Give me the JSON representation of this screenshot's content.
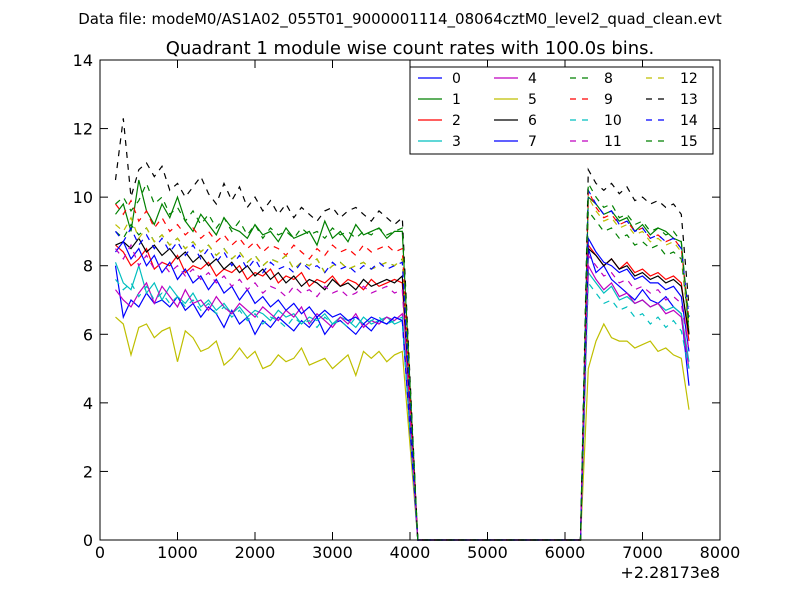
{
  "suptitle": "Data file: modeM0/AS1A02_055T01_9000001114_08064cztM0_level2_quad_clean.evt",
  "chart_data": {
    "type": "line",
    "title": "Quadrant 1 module wise count rates with 100.0s bins.",
    "xlabel": "",
    "ylabel": "",
    "x_offset_label": "+2.28173e8",
    "xlim": [
      0,
      8000
    ],
    "ylim": [
      0,
      14
    ],
    "xticks": [
      "0",
      "1000",
      "2000",
      "3000",
      "4000",
      "5000",
      "6000",
      "7000",
      "8000"
    ],
    "yticks": [
      "0",
      "2",
      "4",
      "6",
      "8",
      "10",
      "12",
      "14"
    ],
    "x_gap": [
      4100,
      6200
    ],
    "x_start_a": 200,
    "x_end_a": 3900,
    "x_start_b": 6300,
    "x_end_b": 7600,
    "step": 100,
    "legend_position": "top-right",
    "series": [
      {
        "name": "0",
        "color": "#0000ff",
        "dash": "solid",
        "segA": [
          8.0,
          6.5,
          7.0,
          6.8,
          7.2,
          6.9,
          7.0,
          6.8,
          7.1,
          6.7,
          6.9,
          6.5,
          6.8,
          6.6,
          6.2,
          6.7,
          6.3,
          6.5,
          6.0,
          6.4,
          6.2,
          6.5,
          6.3,
          6.1,
          6.4,
          6.2,
          6.5,
          6.0,
          6.3,
          6.4,
          6.2,
          6.0,
          6.3,
          6.1,
          6.4,
          6.3,
          6.5,
          6.4
        ],
        "segB": [
          8.5,
          7.8,
          8.0,
          7.6,
          7.4,
          7.2,
          7.0,
          7.3,
          7.0,
          6.9,
          7.1,
          6.8,
          6.6,
          4.5
        ]
      },
      {
        "name": "1",
        "color": "#008000",
        "dash": "solid",
        "segA": [
          9.5,
          9.8,
          9.0,
          10.5,
          9.6,
          9.2,
          9.8,
          9.4,
          10.0,
          9.3,
          9.0,
          9.5,
          9.2,
          8.9,
          9.4,
          9.1,
          9.0,
          8.8,
          9.2,
          8.9,
          9.0,
          8.7,
          9.1,
          8.8,
          8.9,
          9.0,
          8.6,
          9.3,
          8.8,
          9.0,
          8.7,
          9.2,
          8.9,
          9.0,
          9.1,
          8.8,
          9.0,
          9.0
        ],
        "segB": [
          10.0,
          9.8,
          9.5,
          9.6,
          9.3,
          9.4,
          9.0,
          9.2,
          8.9,
          9.1,
          9.0,
          8.8,
          8.7,
          6.0
        ]
      },
      {
        "name": "2",
        "color": "#ff0000",
        "dash": "solid",
        "segA": [
          8.6,
          8.4,
          8.0,
          8.2,
          8.5,
          7.9,
          8.1,
          8.0,
          8.3,
          7.8,
          8.0,
          7.9,
          8.1,
          7.7,
          7.9,
          7.8,
          8.0,
          7.6,
          7.8,
          7.7,
          7.9,
          7.5,
          7.7,
          7.6,
          7.8,
          7.4,
          7.6,
          7.5,
          7.7,
          7.4,
          7.6,
          7.5,
          7.3,
          7.6,
          7.4,
          7.5,
          7.6,
          7.5
        ],
        "segB": [
          8.6,
          8.3,
          8.0,
          8.2,
          7.9,
          8.1,
          7.8,
          7.9,
          7.7,
          7.8,
          7.6,
          7.7,
          7.5,
          5.8
        ]
      },
      {
        "name": "3",
        "color": "#00bfbf",
        "dash": "solid",
        "segA": [
          8.1,
          7.5,
          7.3,
          8.0,
          7.2,
          7.5,
          7.0,
          7.4,
          7.1,
          6.9,
          7.2,
          6.8,
          7.0,
          6.7,
          6.9,
          6.6,
          6.8,
          6.5,
          6.7,
          6.6,
          6.4,
          6.7,
          6.5,
          6.6,
          6.3,
          6.5,
          6.4,
          6.6,
          6.3,
          6.5,
          6.4,
          6.2,
          6.5,
          6.3,
          6.4,
          6.5,
          6.3,
          6.4
        ],
        "segB": [
          7.8,
          7.5,
          7.2,
          7.4,
          7.0,
          7.1,
          6.9,
          7.0,
          6.8,
          6.9,
          6.7,
          6.8,
          6.6,
          5.2
        ]
      },
      {
        "name": "4",
        "color": "#bf00bf",
        "dash": "solid",
        "segA": [
          7.3,
          7.0,
          6.8,
          7.2,
          7.5,
          6.9,
          7.4,
          7.1,
          6.8,
          7.3,
          6.9,
          7.0,
          6.7,
          7.1,
          6.8,
          6.6,
          6.9,
          6.7,
          6.5,
          6.8,
          6.6,
          6.4,
          6.7,
          6.5,
          6.8,
          6.3,
          6.6,
          6.4,
          6.2,
          6.5,
          6.3,
          6.6,
          6.2,
          6.4,
          6.3,
          6.5,
          6.4,
          6.6
        ],
        "segB": [
          8.0,
          7.6,
          7.3,
          7.5,
          7.1,
          7.2,
          6.9,
          7.0,
          6.8,
          6.9,
          6.6,
          6.7,
          6.5,
          5.0
        ]
      },
      {
        "name": "5",
        "color": "#bfbf00",
        "dash": "solid",
        "segA": [
          6.5,
          6.3,
          5.4,
          6.2,
          6.3,
          5.9,
          6.1,
          6.2,
          5.2,
          6.1,
          5.9,
          5.5,
          5.6,
          5.8,
          5.1,
          5.3,
          5.6,
          5.3,
          5.5,
          5.0,
          5.1,
          5.4,
          5.2,
          5.3,
          5.6,
          5.1,
          5.2,
          5.3,
          5.0,
          5.2,
          5.4,
          4.8,
          5.5,
          5.3,
          5.5,
          5.2,
          5.4,
          5.5
        ],
        "segB": [
          5.0,
          5.8,
          6.3,
          5.9,
          5.8,
          5.8,
          5.6,
          5.7,
          5.8,
          5.5,
          5.6,
          5.4,
          5.3,
          3.8
        ]
      },
      {
        "name": "6",
        "color": "#000000",
        "dash": "solid",
        "segA": [
          8.6,
          8.7,
          8.5,
          8.8,
          8.4,
          8.6,
          8.3,
          8.5,
          8.2,
          8.4,
          8.1,
          8.3,
          8.0,
          8.2,
          7.9,
          8.1,
          7.8,
          8.0,
          7.7,
          7.9,
          7.6,
          7.8,
          7.5,
          7.7,
          7.4,
          7.6,
          7.5,
          7.3,
          7.6,
          7.4,
          7.5,
          7.3,
          7.6,
          7.4,
          7.5,
          7.6,
          7.5,
          7.7
        ],
        "segB": [
          8.5,
          8.3,
          8.0,
          8.2,
          7.9,
          8.0,
          7.7,
          7.8,
          7.6,
          7.7,
          7.5,
          7.6,
          7.4,
          6.0
        ]
      },
      {
        "name": "7",
        "color": "#0000ff",
        "dash": "solid",
        "segA": [
          8.4,
          8.7,
          8.2,
          8.5,
          8.0,
          8.3,
          7.8,
          8.1,
          7.6,
          7.9,
          7.5,
          7.7,
          7.3,
          7.6,
          7.2,
          7.4,
          7.0,
          7.3,
          6.9,
          7.1,
          6.8,
          7.0,
          6.7,
          6.9,
          6.6,
          6.8,
          6.5,
          6.7,
          6.5,
          6.6,
          6.4,
          6.5,
          6.3,
          6.5,
          6.4,
          6.3,
          6.5,
          6.4
        ],
        "segB": [
          8.8,
          8.4,
          8.1,
          8.0,
          7.8,
          7.9,
          7.6,
          7.7,
          7.5,
          7.5,
          7.3,
          7.4,
          7.1,
          5.5
        ]
      },
      {
        "name": "8",
        "color": "#008000",
        "dash": "dashed",
        "segA": [
          9.0,
          8.8,
          9.2,
          8.9,
          9.1,
          8.7,
          8.9,
          8.6,
          8.8,
          8.5,
          8.7,
          8.4,
          8.6,
          8.3,
          8.5,
          8.2,
          8.4,
          8.1,
          8.3,
          8.0,
          8.2,
          8.1,
          8.3,
          7.9,
          8.1,
          8.0,
          8.2,
          7.8,
          8.0,
          8.1,
          7.9,
          8.0,
          8.1,
          7.9,
          8.0,
          8.1,
          8.0,
          8.2
        ],
        "segB": [
          9.6,
          9.3,
          9.0,
          9.1,
          8.8,
          8.9,
          8.6,
          8.7,
          8.5,
          8.6,
          8.3,
          8.4,
          8.2,
          6.2
        ]
      },
      {
        "name": "9",
        "color": "#ff0000",
        "dash": "dashed",
        "segA": [
          9.8,
          9.5,
          9.9,
          9.3,
          9.6,
          9.1,
          9.4,
          9.0,
          9.2,
          8.9,
          9.1,
          8.8,
          9.0,
          8.7,
          8.9,
          8.6,
          8.8,
          8.5,
          8.7,
          8.4,
          8.6,
          8.5,
          8.3,
          8.6,
          8.4,
          8.2,
          8.5,
          8.3,
          8.6,
          8.4,
          8.5,
          8.3,
          8.6,
          8.4,
          8.5,
          8.6,
          8.4,
          8.5
        ],
        "segB": [
          10.2,
          9.7,
          9.4,
          9.5,
          9.2,
          9.3,
          9.0,
          9.1,
          8.8,
          8.9,
          8.7,
          8.8,
          8.5,
          6.4
        ]
      },
      {
        "name": "10",
        "color": "#00bfbf",
        "dash": "dashed",
        "segA": [
          7.6,
          7.3,
          7.5,
          7.1,
          7.4,
          7.0,
          7.2,
          6.9,
          7.1,
          6.8,
          7.0,
          6.7,
          6.9,
          6.6,
          6.8,
          6.5,
          6.7,
          6.4,
          6.6,
          6.3,
          6.5,
          6.4,
          6.2,
          6.5,
          6.3,
          6.4,
          6.2,
          6.5,
          6.3,
          6.4,
          6.2,
          6.5,
          6.3,
          6.4,
          6.5,
          6.3,
          6.4,
          6.5
        ],
        "segB": [
          7.5,
          7.2,
          6.9,
          7.0,
          6.7,
          6.8,
          6.5,
          6.6,
          6.3,
          6.5,
          6.2,
          6.4,
          6.1,
          5.0
        ]
      },
      {
        "name": "11",
        "color": "#bf00bf",
        "dash": "dashed",
        "segA": [
          8.5,
          8.2,
          8.6,
          8.0,
          8.3,
          7.9,
          8.1,
          7.8,
          8.0,
          7.7,
          7.9,
          7.6,
          7.8,
          7.5,
          7.7,
          7.4,
          7.6,
          7.3,
          7.5,
          7.2,
          7.4,
          7.3,
          7.1,
          7.4,
          7.2,
          7.3,
          7.1,
          7.4,
          7.2,
          7.3,
          7.1,
          7.2,
          7.4,
          7.2,
          7.3,
          7.4,
          7.2,
          7.3
        ],
        "segB": [
          8.3,
          8.0,
          7.7,
          7.8,
          7.5,
          7.6,
          7.3,
          7.4,
          7.2,
          7.3,
          7.0,
          7.1,
          6.9,
          5.5
        ]
      },
      {
        "name": "12",
        "color": "#bfbf00",
        "dash": "dashed",
        "segA": [
          9.2,
          9.0,
          9.4,
          8.8,
          9.1,
          8.7,
          8.9,
          8.6,
          8.8,
          8.5,
          8.7,
          8.4,
          8.6,
          8.3,
          8.5,
          8.2,
          8.4,
          8.1,
          8.3,
          8.0,
          8.2,
          8.1,
          8.3,
          7.9,
          8.1,
          8.0,
          8.2,
          7.8,
          8.0,
          8.1,
          7.9,
          8.0,
          8.1,
          7.9,
          8.0,
          8.1,
          8.0,
          8.2
        ],
        "segB": [
          10.0,
          9.6,
          9.3,
          9.4,
          9.1,
          9.2,
          8.9,
          9.0,
          8.7,
          8.8,
          8.6,
          8.7,
          8.4,
          6.2
        ]
      },
      {
        "name": "13",
        "color": "#000000",
        "dash": "dashed",
        "segA": [
          10.5,
          12.3,
          10.0,
          10.8,
          11.0,
          10.6,
          10.9,
          10.2,
          10.4,
          10.0,
          10.3,
          10.6,
          10.1,
          9.8,
          10.4,
          9.9,
          10.3,
          9.7,
          10.0,
          9.6,
          9.9,
          9.5,
          9.8,
          9.4,
          9.7,
          9.5,
          9.3,
          9.6,
          9.7,
          9.4,
          9.6,
          9.7,
          9.5,
          9.3,
          9.6,
          9.4,
          9.2,
          9.4
        ],
        "segB": [
          10.8,
          10.4,
          10.2,
          10.4,
          10.1,
          10.3,
          9.9,
          10.0,
          9.8,
          9.9,
          9.7,
          9.8,
          9.5,
          6.8
        ]
      },
      {
        "name": "14",
        "color": "#0000ff",
        "dash": "dashed",
        "segA": [
          9.0,
          8.7,
          9.1,
          8.6,
          8.9,
          8.5,
          8.8,
          8.4,
          8.7,
          8.3,
          8.6,
          8.2,
          8.5,
          8.1,
          8.4,
          8.0,
          8.3,
          7.9,
          8.2,
          7.8,
          8.1,
          7.9,
          8.0,
          7.8,
          8.1,
          7.9,
          8.0,
          7.8,
          8.1,
          7.9,
          8.0,
          7.8,
          8.0,
          7.9,
          8.1,
          7.9,
          8.0,
          8.1
        ],
        "segB": [
          10.2,
          9.8,
          9.5,
          9.6,
          9.2,
          9.3,
          9.0,
          9.1,
          8.8,
          8.9,
          8.7,
          8.8,
          8.5,
          6.5
        ]
      },
      {
        "name": "15",
        "color": "#008000",
        "dash": "dashed",
        "segA": [
          9.8,
          10.0,
          9.6,
          9.9,
          10.4,
          9.8,
          10.0,
          9.5,
          9.7,
          9.3,
          9.6,
          9.2,
          9.5,
          9.1,
          9.4,
          9.0,
          9.3,
          8.9,
          9.2,
          8.8,
          9.1,
          8.9,
          9.0,
          8.8,
          9.1,
          8.9,
          9.0,
          8.8,
          9.1,
          8.9,
          9.0,
          8.8,
          9.0,
          8.9,
          9.1,
          8.9,
          9.0,
          9.1
        ],
        "segB": [
          10.4,
          10.0,
          9.7,
          9.8,
          9.4,
          9.5,
          9.2,
          9.3,
          9.0,
          9.1,
          8.9,
          9.0,
          8.7,
          6.3
        ]
      }
    ]
  }
}
